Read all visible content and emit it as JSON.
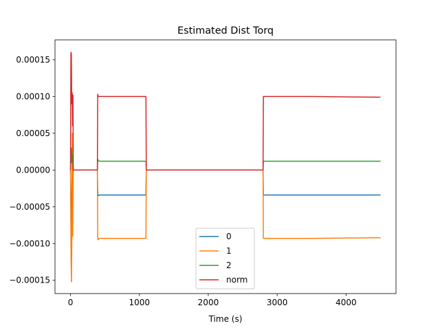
{
  "chart_data": {
    "type": "line",
    "title": "Estimated Dist Torq",
    "xlabel": "Time (s)",
    "ylabel": "",
    "xlim": [
      -225,
      4725
    ],
    "ylim": [
      -0.000168,
      0.000177
    ],
    "xticks": [
      0,
      1000,
      2000,
      3000,
      4000
    ],
    "xtick_labels": [
      "0",
      "1000",
      "2000",
      "3000",
      "4000"
    ],
    "yticks": [
      -0.00015,
      -0.0001,
      -5e-05,
      0,
      5e-05,
      0.0001,
      0.00015
    ],
    "ytick_labels": [
      "−0.00015",
      "−0.00010",
      "−0.00005",
      "0.00000",
      "0.00005",
      "0.00010",
      "0.00015"
    ],
    "grid": false,
    "legend_position": "lower center",
    "colors": {
      "0": "#1f77b4",
      "1": "#ff7f0e",
      "2": "#2ca02c",
      "norm": "#d62728"
    },
    "series": [
      {
        "name": "0",
        "points": [
          [
            0,
            0
          ],
          [
            10,
            -5e-05
          ],
          [
            18,
            -8e-05
          ],
          [
            25,
            1e-05
          ],
          [
            32,
            -3e-05
          ],
          [
            40,
            0
          ],
          [
            390,
            0
          ],
          [
            395,
            -3e-05
          ],
          [
            400,
            -3.5e-05
          ],
          [
            420,
            -3.4e-05
          ],
          [
            700,
            -3.4e-05
          ],
          [
            1095,
            -3.4e-05
          ],
          [
            1100,
            0
          ],
          [
            2795,
            0
          ],
          [
            2800,
            -3.4e-05
          ],
          [
            3500,
            -3.4e-05
          ],
          [
            4500,
            -3.4e-05
          ]
        ]
      },
      {
        "name": "1",
        "points": [
          [
            0,
            0
          ],
          [
            8,
            -0.00012
          ],
          [
            14,
            -0.000152
          ],
          [
            20,
            -9e-05
          ],
          [
            26,
            5e-05
          ],
          [
            32,
            -9e-05
          ],
          [
            40,
            0
          ],
          [
            390,
            0
          ],
          [
            395,
            -9e-05
          ],
          [
            400,
            -9.5e-05
          ],
          [
            420,
            -9.3e-05
          ],
          [
            700,
            -9.3e-05
          ],
          [
            1095,
            -9.3e-05
          ],
          [
            1100,
            0
          ],
          [
            2795,
            0
          ],
          [
            2800,
            -9.3e-05
          ],
          [
            3500,
            -9.3e-05
          ],
          [
            4500,
            -9.2e-05
          ]
        ]
      },
      {
        "name": "2",
        "points": [
          [
            0,
            0
          ],
          [
            8,
            2e-05
          ],
          [
            14,
            3e-05
          ],
          [
            20,
            1e-05
          ],
          [
            26,
            1e-05
          ],
          [
            32,
            2e-05
          ],
          [
            40,
            0
          ],
          [
            390,
            0
          ],
          [
            395,
            1.5e-05
          ],
          [
            400,
            1.3e-05
          ],
          [
            420,
            1.2e-05
          ],
          [
            700,
            1.2e-05
          ],
          [
            1095,
            1.2e-05
          ],
          [
            1100,
            0
          ],
          [
            2795,
            0
          ],
          [
            2800,
            1.2e-05
          ],
          [
            3500,
            1.2e-05
          ],
          [
            4500,
            1.2e-05
          ]
        ]
      },
      {
        "name": "norm",
        "points": [
          [
            0,
            0
          ],
          [
            6,
            0.00016
          ],
          [
            12,
            0.000158
          ],
          [
            18,
            9e-05
          ],
          [
            24,
            0.000105
          ],
          [
            30,
            6e-05
          ],
          [
            36,
            0.000102
          ],
          [
            40,
            0
          ],
          [
            390,
            0
          ],
          [
            395,
            0.000103
          ],
          [
            405,
            0.0001
          ],
          [
            700,
            0.0001
          ],
          [
            1095,
            0.0001
          ],
          [
            1100,
            0
          ],
          [
            2795,
            0
          ],
          [
            2800,
            0.0001
          ],
          [
            3500,
            0.0001
          ],
          [
            4500,
            9.9e-05
          ]
        ]
      }
    ]
  }
}
